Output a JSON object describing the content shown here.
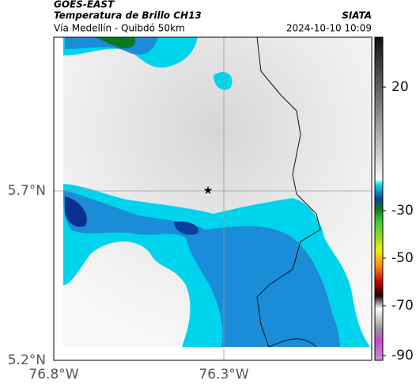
{
  "header": {
    "title": "GOES-EAST",
    "subtitle": "Temperatura de Brillo CH13",
    "region": "Vía Medellín - Quibdó 50km",
    "source": "SIATA",
    "timestamp": "2024-10-10 10:09"
  },
  "axes": {
    "lat_labels": [
      "5.7°N",
      "5.2°N"
    ],
    "lon_labels": [
      "76.8°W",
      "76.3°W"
    ]
  },
  "colorbar": {
    "labels": [
      20,
      -30,
      -50,
      -70,
      -90
    ]
  }
}
